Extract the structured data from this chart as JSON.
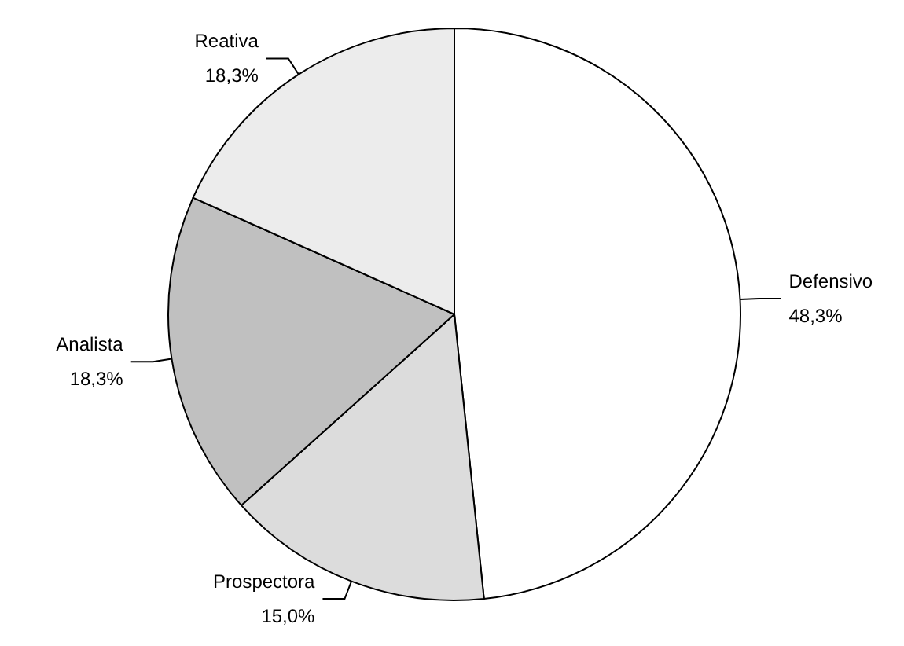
{
  "chart_data": {
    "type": "pie",
    "categories": [
      "Defensivo",
      "Prospectora",
      "Analista",
      "Reativa"
    ],
    "values": [
      48.3,
      15.0,
      18.3,
      18.3
    ],
    "value_labels": [
      "48,3%",
      "15,0%",
      "18,3%",
      "18,3%"
    ],
    "colors": [
      "#ffffff",
      "#dcdcdc",
      "#c0c0c0",
      "#ececec"
    ],
    "legend": false
  }
}
